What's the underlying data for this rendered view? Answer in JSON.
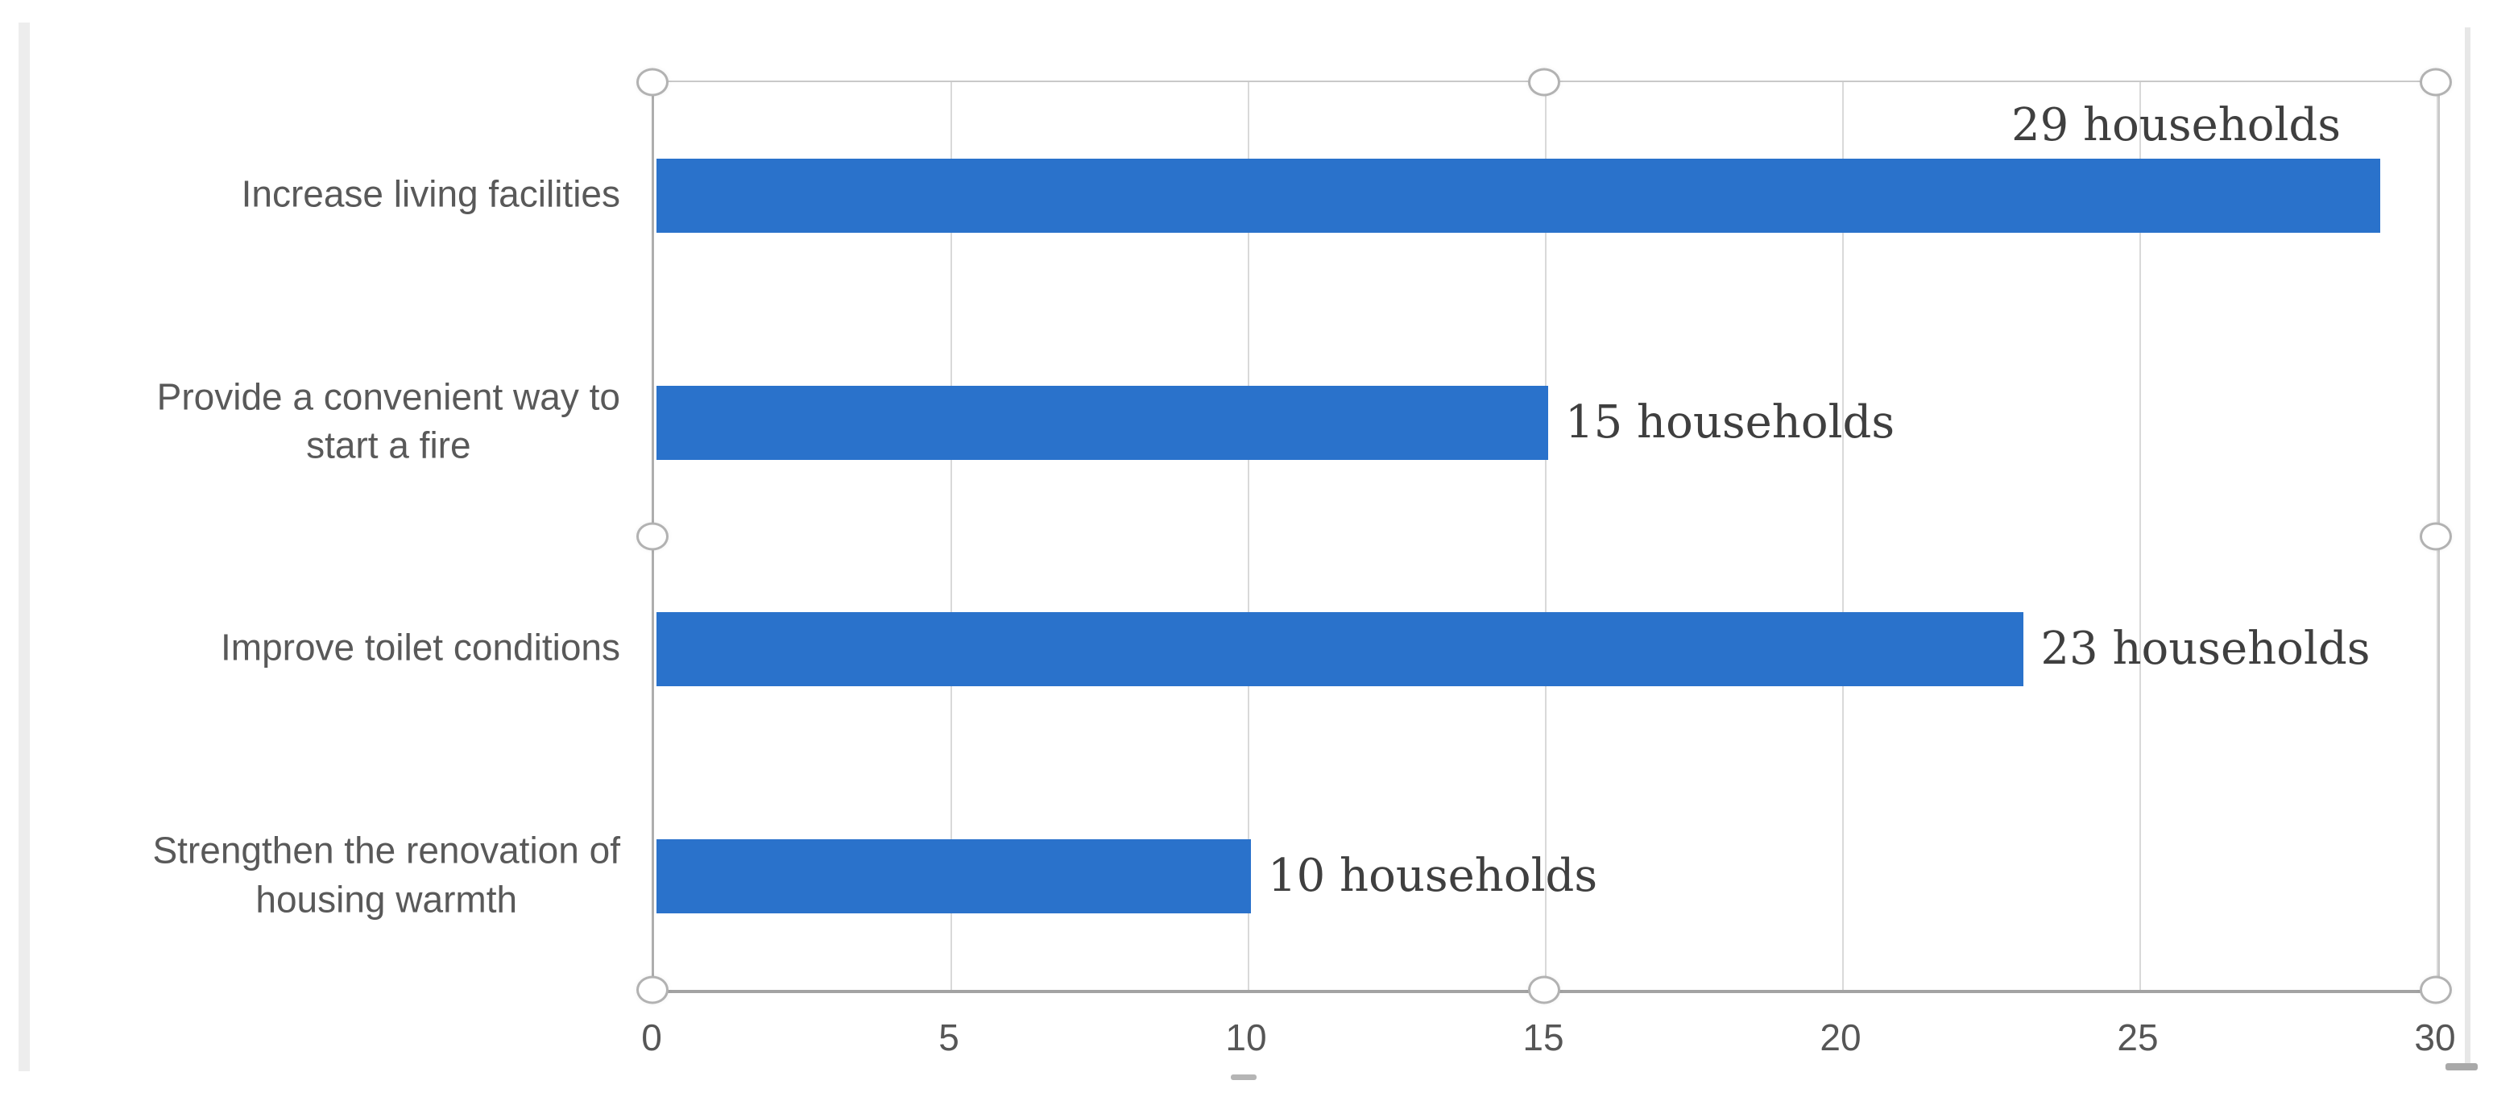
{
  "chart_data": {
    "type": "bar",
    "orientation": "horizontal",
    "title": "",
    "xlabel": "",
    "ylabel": "",
    "categories": [
      "Increase living facilities",
      "Provide a convenient way to\nstart a fire",
      "Improve toilet conditions",
      "Strengthen the renovation of\nhousing warmth"
    ],
    "values": [
      29,
      15,
      23,
      10
    ],
    "data_labels": [
      "29 households",
      "15 households",
      "23 households",
      "10 households"
    ],
    "data_label_placement": [
      "above-end",
      "outside-end",
      "outside-end",
      "outside-end"
    ],
    "x_ticks": [
      "0",
      "5",
      "10",
      "15",
      "20",
      "25",
      "30"
    ],
    "x_tick_values": [
      0,
      5,
      10,
      15,
      20,
      25,
      30
    ],
    "xlim": [
      0,
      30
    ],
    "grid": "vertical-only",
    "legend": "none",
    "selection_handles_visible": true,
    "colors": {
      "bar": "#2A72CB",
      "gridline": "#D9D9D9",
      "axis_line": "#A8A8A8",
      "category_label": "#595959",
      "tick_label": "#565656",
      "data_label": "#3F3F3F"
    }
  }
}
